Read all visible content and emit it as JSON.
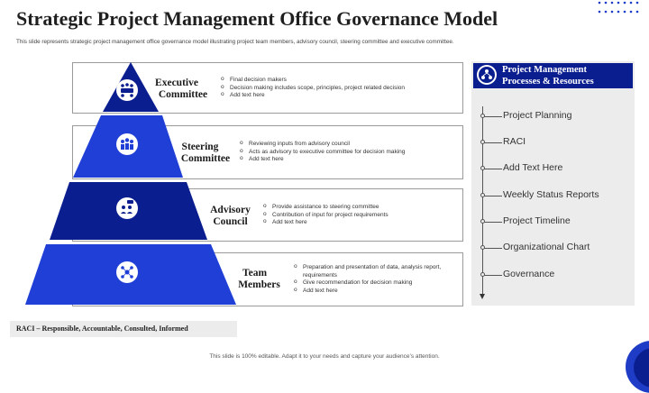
{
  "title": "Strategic Project Management Office Governance Model",
  "subtitle": "This slide represents strategic project management office governance model illustrating project team members, advisory council, steering committee and executive committee.",
  "levels": [
    {
      "title_line1": "Executive",
      "title_line2": "Committee",
      "icon": "meeting-table-icon",
      "bullets": [
        "Final decision makers",
        "Decision making includes scope, principles, project related decision",
        "Add text here"
      ]
    },
    {
      "title_line1": "Steering",
      "title_line2": "Committee",
      "icon": "group-people-icon",
      "bullets": [
        "Reviewing inputs from advisory council",
        "Acts as advisory to executive committee for decision making",
        "Add text here"
      ]
    },
    {
      "title_line1": "Advisory",
      "title_line2": "Council",
      "icon": "discussion-people-icon",
      "bullets": [
        "Provide assistance to steering committee",
        "Contribution of input for project requirements",
        "Add text here"
      ]
    },
    {
      "title_line1": "Team",
      "title_line2": "Members",
      "icon": "team-network-icon",
      "bullets": [
        "Preparation and presentation of data, analysis report, requirements",
        "Give recommendation for decision making",
        "Add text here"
      ]
    }
  ],
  "panel": {
    "title_line1": "Project Management",
    "title_line2": "Processes & Resources",
    "icon": "people-network-icon",
    "items": [
      "Project Planning",
      "RACI",
      "Add Text Here",
      "Weekly Status Reports",
      "Project Timeline",
      "Organizational Chart",
      "Governance"
    ]
  },
  "raci_note": "RACI – Responsible, Accountable, Consulted, Informed",
  "footer": "This slide is 100% editable. Adapt it to your needs and capture your audience’s attention.",
  "colors": {
    "dark_blue": "#0b1e8f",
    "bright_blue": "#1f3fd6",
    "panel_bg": "#ececec"
  }
}
